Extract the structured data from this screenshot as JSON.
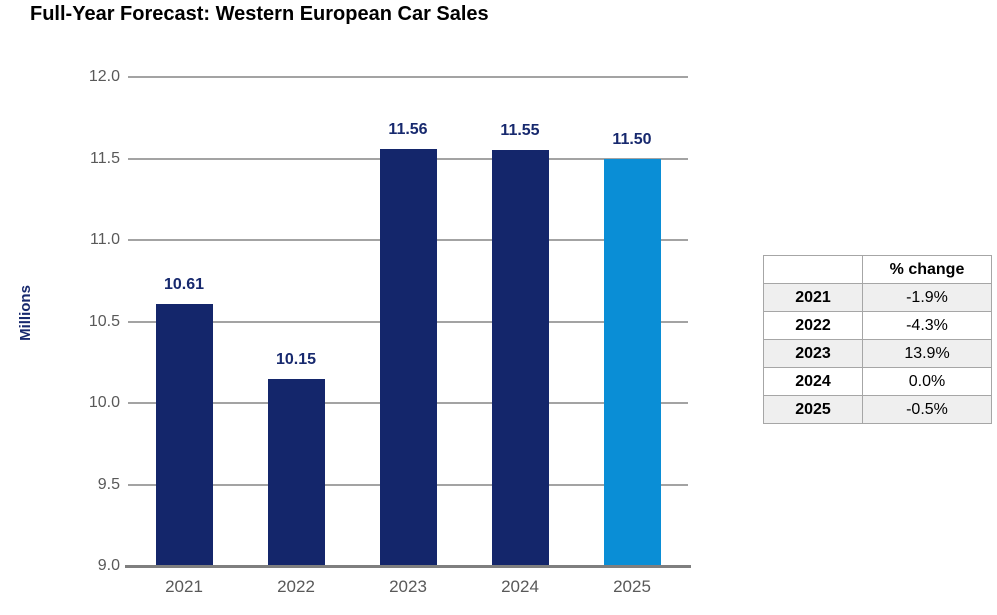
{
  "title": "Full-Year Forecast: Western European Car Sales",
  "chart_data": {
    "type": "bar",
    "title": "Full-Year Forecast: Western European Car Sales",
    "categories": [
      "2021",
      "2022",
      "2023",
      "2024",
      "2025"
    ],
    "values": [
      10.61,
      10.15,
      11.56,
      11.55,
      11.5
    ],
    "value_labels": [
      "10.61",
      "10.15",
      "11.56",
      "11.55",
      "11.50"
    ],
    "bar_colors": [
      "#14266b",
      "#14266b",
      "#14266b",
      "#14266b",
      "#0a8ed6"
    ],
    "xlabel": "",
    "ylabel": "Millions",
    "ylim": [
      9.0,
      12.0
    ],
    "yticks": [
      9.0,
      9.5,
      10.0,
      10.5,
      11.0,
      11.5,
      12.0
    ],
    "ytick_labels": [
      "9.0",
      "9.5",
      "10.0",
      "10.5",
      "11.0",
      "11.5",
      "12.0"
    ],
    "grid": true,
    "legend": "none"
  },
  "table": {
    "header_year": "",
    "header_change": "% change",
    "rows": [
      {
        "year": "2021",
        "change": "-1.9%"
      },
      {
        "year": "2022",
        "change": "-4.3%"
      },
      {
        "year": "2023",
        "change": "13.9%"
      },
      {
        "year": "2024",
        "change": "0.0%"
      },
      {
        "year": "2025",
        "change": "-0.5%"
      }
    ]
  },
  "colors": {
    "bar_navy": "#14266b",
    "bar_blue": "#0a8ed6",
    "value_label": "#17296e",
    "gridline": "#a3a3a3",
    "axis_line": "#7f7f7f",
    "tick_text": "#595959",
    "table_border": "#a6a6a6",
    "table_shaded_row": "#efefef",
    "title_text": "#000000"
  }
}
